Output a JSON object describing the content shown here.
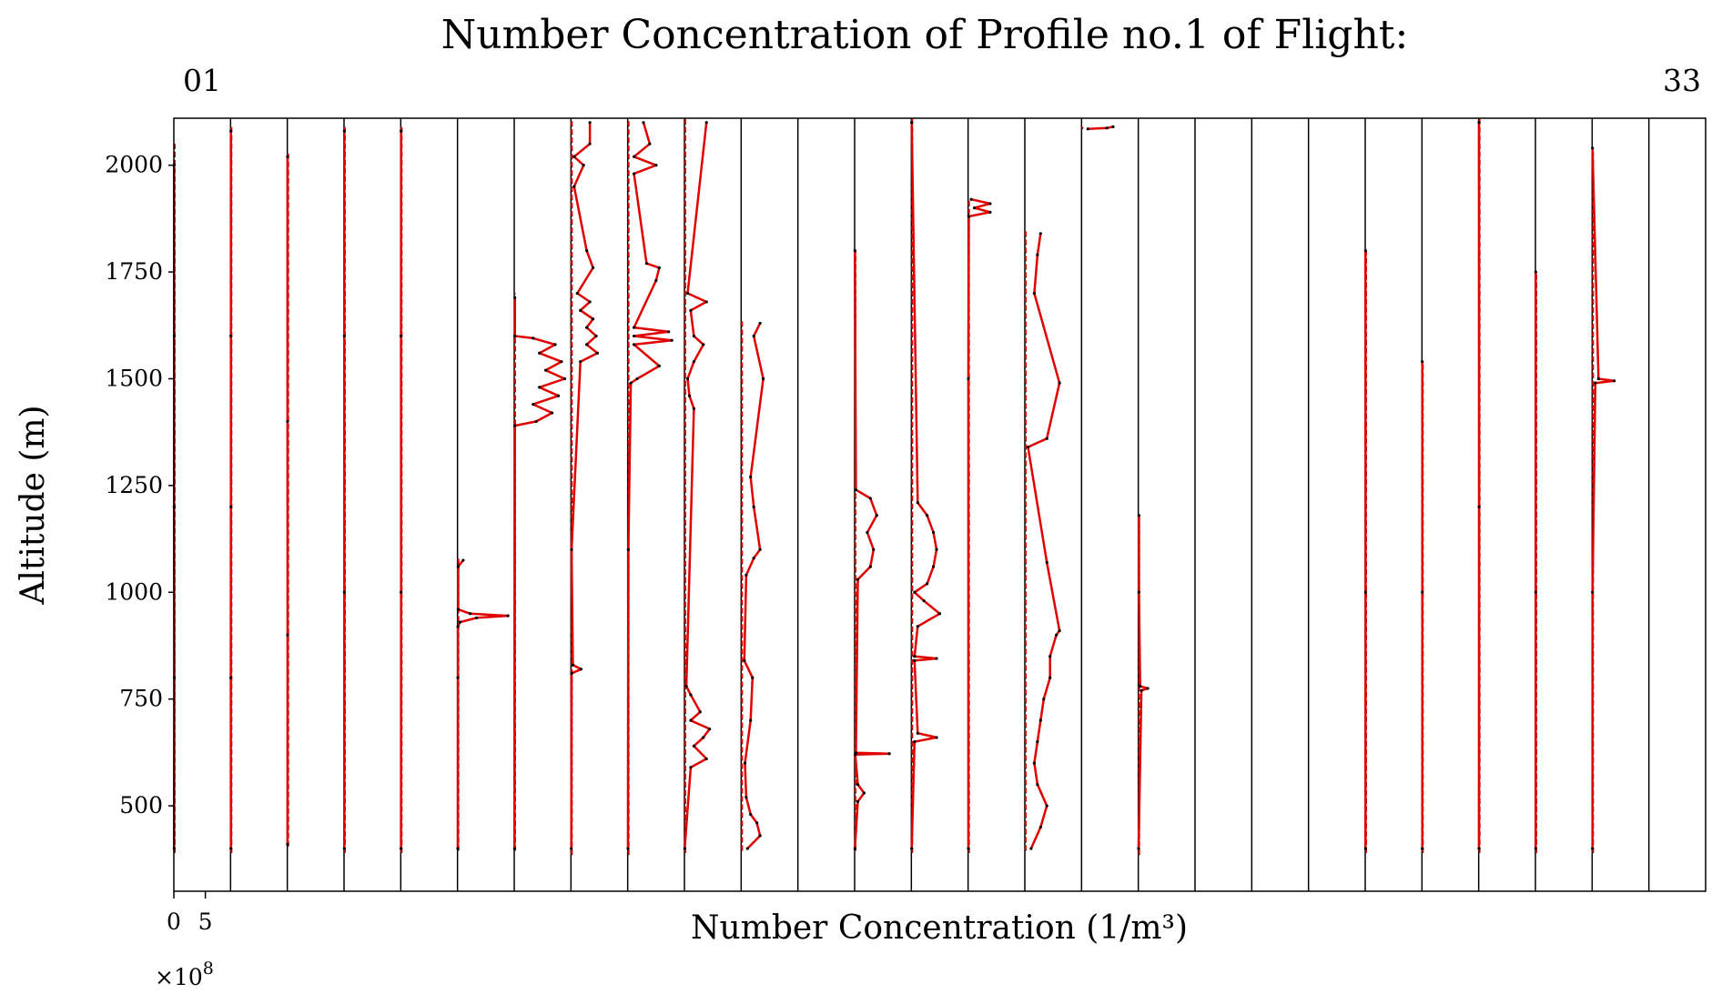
{
  "chart_data": {
    "type": "line",
    "title": "Number Concentration of Profile no.1 of Flight:",
    "flight_first": "01",
    "flight_last": "33",
    "xlabel": "Number Concentration (1/m³)",
    "ylabel": "Altitude (m)",
    "ylim": [
      300,
      2110
    ],
    "y_ticks": [
      500,
      750,
      1000,
      1250,
      1500,
      1750,
      2000
    ],
    "y_tick_labels": [
      "500",
      "750",
      "1000",
      "1250",
      "1500",
      "1750",
      "2000"
    ],
    "x_ticks": [
      0,
      5
    ],
    "x_tick_labels": [
      "0",
      "5"
    ],
    "x_exponent": "×10",
    "x_exponent_power": "8",
    "panel_count": 27,
    "panel_xlim": [
      0,
      9
    ],
    "line_color": "#e00000",
    "point_color": "#000000",
    "series": [
      {
        "panel": 1,
        "alt_range": [
          390,
          2050
        ],
        "values": [
          [
            400,
            0.05
          ],
          [
            800,
            0.08
          ],
          [
            1200,
            0.04
          ],
          [
            1600,
            0.06
          ],
          [
            2000,
            0.05
          ]
        ]
      },
      {
        "panel": 2,
        "alt_range": [
          390,
          2090
        ],
        "values": [
          [
            400,
            0.05
          ],
          [
            800,
            0.04
          ],
          [
            1200,
            0.06
          ],
          [
            1600,
            0.05
          ],
          [
            2080,
            0.05
          ]
        ]
      },
      {
        "panel": 3,
        "alt_range": [
          405,
          2030
        ],
        "values": [
          [
            410,
            0.04
          ],
          [
            900,
            0.05
          ],
          [
            1400,
            0.04
          ],
          [
            2020,
            0.04
          ]
        ]
      },
      {
        "panel": 4,
        "alt_range": [
          390,
          2090
        ],
        "values": [
          [
            400,
            0.05
          ],
          [
            1000,
            0.06
          ],
          [
            1600,
            0.05
          ],
          [
            2080,
            0.05
          ]
        ]
      },
      {
        "panel": 5,
        "alt_range": [
          390,
          2090
        ],
        "values": [
          [
            400,
            0.04
          ],
          [
            1000,
            0.05
          ],
          [
            1600,
            0.04
          ],
          [
            2080,
            0.05
          ]
        ]
      },
      {
        "panel": 6,
        "alt_range": [
          395,
          1080
        ],
        "values": [
          [
            400,
            0.05
          ],
          [
            800,
            0.06
          ],
          [
            920,
            0.06
          ],
          [
            930,
            0.4
          ],
          [
            940,
            3.0
          ],
          [
            945,
            8.0
          ],
          [
            950,
            2.0
          ],
          [
            960,
            0.1
          ],
          [
            1060,
            0.1
          ],
          [
            1075,
            0.9
          ]
        ]
      },
      {
        "panel": 7,
        "alt_range": [
          395,
          1700
        ],
        "values": [
          [
            400,
            0.05
          ],
          [
            1390,
            0.1
          ],
          [
            1400,
            3.5
          ],
          [
            1420,
            6.0
          ],
          [
            1440,
            3.0
          ],
          [
            1460,
            7.0
          ],
          [
            1480,
            4.0
          ],
          [
            1500,
            8.0
          ],
          [
            1520,
            5.0
          ],
          [
            1540,
            7.5
          ],
          [
            1560,
            4.0
          ],
          [
            1580,
            6.5
          ],
          [
            1595,
            3.0
          ],
          [
            1600,
            0.1
          ],
          [
            1690,
            0.1
          ]
        ]
      },
      {
        "panel": 8,
        "alt_range": [
          385,
          2110
        ],
        "values": [
          [
            400,
            0.05
          ],
          [
            810,
            0.1
          ],
          [
            820,
            1.6
          ],
          [
            830,
            0.3
          ],
          [
            1100,
            0.1
          ],
          [
            1540,
            1.5
          ],
          [
            1560,
            4.2
          ],
          [
            1580,
            2.5
          ],
          [
            1600,
            4.0
          ],
          [
            1620,
            2.5
          ],
          [
            1640,
            3.5
          ],
          [
            1660,
            1.5
          ],
          [
            1680,
            3.0
          ],
          [
            1700,
            1.0
          ],
          [
            1760,
            3.5
          ],
          [
            1800,
            2.5
          ],
          [
            1950,
            0.5
          ],
          [
            2000,
            2.0
          ],
          [
            2020,
            0.5
          ],
          [
            2050,
            3.0
          ],
          [
            2100,
            3.0
          ]
        ]
      },
      {
        "panel": 9,
        "alt_range": [
          385,
          2110
        ],
        "values": [
          [
            400,
            0.05
          ],
          [
            1100,
            0.1
          ],
          [
            1490,
            0.5
          ],
          [
            1500,
            1.5
          ],
          [
            1530,
            5.0
          ],
          [
            1580,
            1.0
          ],
          [
            1590,
            7.0
          ],
          [
            1600,
            1.0
          ],
          [
            1610,
            6.5
          ],
          [
            1620,
            1.0
          ],
          [
            1730,
            4.5
          ],
          [
            1760,
            5.0
          ],
          [
            1770,
            3.0
          ],
          [
            1980,
            1.0
          ],
          [
            2000,
            4.5
          ],
          [
            2020,
            1.0
          ],
          [
            2050,
            3.5
          ],
          [
            2100,
            2.5
          ]
        ]
      },
      {
        "panel": 10,
        "alt_range": [
          390,
          2110
        ],
        "values": [
          [
            400,
            0.05
          ],
          [
            590,
            1.0
          ],
          [
            610,
            3.5
          ],
          [
            640,
            1.5
          ],
          [
            660,
            3.0
          ],
          [
            680,
            4.0
          ],
          [
            700,
            1.0
          ],
          [
            720,
            2.5
          ],
          [
            760,
            1.0
          ],
          [
            780,
            0.3
          ],
          [
            1430,
            1.5
          ],
          [
            1460,
            0.8
          ],
          [
            1500,
            0.5
          ],
          [
            1540,
            1.5
          ],
          [
            1580,
            3.0
          ],
          [
            1600,
            1.5
          ],
          [
            1660,
            1.0
          ],
          [
            1680,
            3.5
          ],
          [
            1700,
            0.5
          ],
          [
            2100,
            3.5
          ]
        ]
      },
      {
        "panel": 11,
        "alt_range": [
          395,
          1640
        ],
        "values": [
          [
            400,
            1.0
          ],
          [
            430,
            3.0
          ],
          [
            460,
            2.5
          ],
          [
            480,
            1.5
          ],
          [
            520,
            0.8
          ],
          [
            600,
            0.6
          ],
          [
            700,
            1.5
          ],
          [
            800,
            1.8
          ],
          [
            840,
            0.5
          ],
          [
            1040,
            0.8
          ],
          [
            1080,
            2.0
          ],
          [
            1100,
            3.0
          ],
          [
            1200,
            2.0
          ],
          [
            1270,
            1.5
          ],
          [
            1500,
            3.5
          ],
          [
            1600,
            2.0
          ],
          [
            1630,
            3.0
          ]
        ]
      },
      {
        "panel": 12,
        "alt_range": [
          0,
          0
        ],
        "values": []
      },
      {
        "panel": 13,
        "alt_range": [
          395,
          1800
        ],
        "values": [
          [
            400,
            0.05
          ],
          [
            510,
            0.5
          ],
          [
            530,
            1.5
          ],
          [
            550,
            0.5
          ],
          [
            620,
            0.1
          ],
          [
            622,
            5.5
          ],
          [
            624,
            0.2
          ],
          [
            1030,
            0.5
          ],
          [
            1060,
            2.5
          ],
          [
            1100,
            3.0
          ],
          [
            1140,
            2.0
          ],
          [
            1180,
            3.5
          ],
          [
            1220,
            2.5
          ],
          [
            1240,
            0.2
          ],
          [
            1800,
            0.05
          ]
        ]
      },
      {
        "panel": 14,
        "alt_range": [
          390,
          2110
        ],
        "values": [
          [
            400,
            0.05
          ],
          [
            650,
            0.5
          ],
          [
            660,
            4.0
          ],
          [
            670,
            1.0
          ],
          [
            840,
            0.5
          ],
          [
            845,
            4.0
          ],
          [
            850,
            0.5
          ],
          [
            920,
            1.0
          ],
          [
            950,
            4.5
          ],
          [
            980,
            2.0
          ],
          [
            1000,
            0.5
          ],
          [
            1020,
            2.5
          ],
          [
            1060,
            3.5
          ],
          [
            1100,
            4.0
          ],
          [
            1140,
            3.5
          ],
          [
            1180,
            2.5
          ],
          [
            1210,
            1.0
          ],
          [
            2100,
            0.05
          ]
        ]
      },
      {
        "panel": 15,
        "alt_range": [
          390,
          1920
        ],
        "values": [
          [
            400,
            0.05
          ],
          [
            1500,
            0.05
          ],
          [
            1880,
            0.1
          ],
          [
            1890,
            3.5
          ],
          [
            1900,
            1.0
          ],
          [
            1910,
            3.5
          ],
          [
            1920,
            0.5
          ]
        ]
      },
      {
        "panel": 16,
        "alt_range": [
          395,
          1850
        ],
        "values": [
          [
            400,
            1.0
          ],
          [
            450,
            2.5
          ],
          [
            500,
            3.5
          ],
          [
            550,
            2.0
          ],
          [
            600,
            1.5
          ],
          [
            650,
            2.0
          ],
          [
            700,
            2.5
          ],
          [
            750,
            3.0
          ],
          [
            800,
            4.0
          ],
          [
            850,
            4.0
          ],
          [
            900,
            5.0
          ],
          [
            910,
            5.5
          ],
          [
            1070,
            3.5
          ],
          [
            1340,
            0.5
          ],
          [
            1360,
            3.5
          ],
          [
            1490,
            5.5
          ],
          [
            1700,
            1.5
          ],
          [
            1790,
            2.0
          ],
          [
            1840,
            2.5
          ]
        ]
      },
      {
        "panel": 17,
        "alt_range": [
          2085,
          2090
        ],
        "values": [
          [
            2085,
            1.0
          ],
          [
            2087,
            4.0
          ],
          [
            2090,
            5.0
          ]
        ]
      },
      {
        "panel": 18,
        "alt_range": [
          385,
          1180
        ],
        "values": [
          [
            400,
            0.05
          ],
          [
            770,
            0.5
          ],
          [
            775,
            1.5
          ],
          [
            780,
            0.3
          ],
          [
            1000,
            0.1
          ],
          [
            1180,
            0.1
          ]
        ]
      },
      {
        "panel": 19,
        "alt_range": [
          0,
          0
        ],
        "values": []
      },
      {
        "panel": 20,
        "alt_range": [
          0,
          0
        ],
        "values": []
      },
      {
        "panel": 21,
        "alt_range": [
          0,
          0
        ],
        "values": []
      },
      {
        "panel": 22,
        "alt_range": [
          390,
          1800
        ],
        "values": [
          [
            400,
            0.05
          ],
          [
            1000,
            0.06
          ],
          [
            1800,
            0.05
          ]
        ]
      },
      {
        "panel": 23,
        "alt_range": [
          390,
          1540
        ],
        "values": [
          [
            400,
            0.05
          ],
          [
            1000,
            0.06
          ],
          [
            1540,
            0.05
          ]
        ]
      },
      {
        "panel": 24,
        "alt_range": [
          390,
          2110
        ],
        "values": [
          [
            400,
            0.05
          ],
          [
            1200,
            0.06
          ],
          [
            2100,
            0.05
          ]
        ]
      },
      {
        "panel": 25,
        "alt_range": [
          390,
          1750
        ],
        "values": [
          [
            400,
            0.05
          ],
          [
            1000,
            0.05
          ],
          [
            1750,
            0.05
          ]
        ]
      },
      {
        "panel": 26,
        "alt_range": [
          390,
          2040
        ],
        "values": [
          [
            400,
            0.05
          ],
          [
            1000,
            0.05
          ],
          [
            1490,
            0.5
          ],
          [
            1495,
            3.5
          ],
          [
            1500,
            1.0
          ],
          [
            2040,
            0.05
          ]
        ]
      },
      {
        "panel": 27,
        "alt_range": [
          0,
          0
        ],
        "values": []
      }
    ]
  }
}
